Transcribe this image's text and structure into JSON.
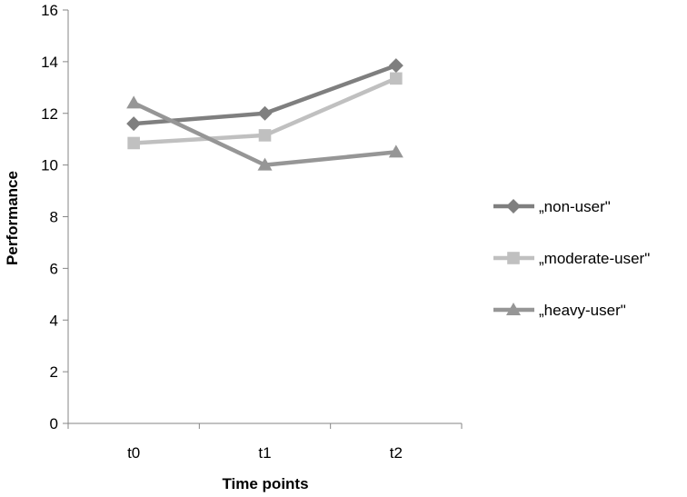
{
  "chart_data": {
    "type": "line",
    "categories": [
      "t0",
      "t1",
      "t2"
    ],
    "xlabel": "Time points",
    "ylabel": "Performance",
    "ylim": [
      0,
      16
    ],
    "yticks": [
      0,
      2,
      4,
      6,
      8,
      10,
      12,
      14,
      16
    ],
    "grid": false,
    "legend_position": "right",
    "series": [
      {
        "name": "„non-user\"",
        "values": [
          11.6,
          12.0,
          13.85
        ],
        "color": "#7f7f7f",
        "marker": "diamond"
      },
      {
        "name": "„moderate-user\"",
        "values": [
          10.85,
          11.15,
          13.35
        ],
        "color": "#c0c0c0",
        "marker": "square"
      },
      {
        "name": "„heavy-user\"",
        "values": [
          12.4,
          10.0,
          10.5
        ],
        "color": "#969696",
        "marker": "triangle"
      }
    ]
  }
}
